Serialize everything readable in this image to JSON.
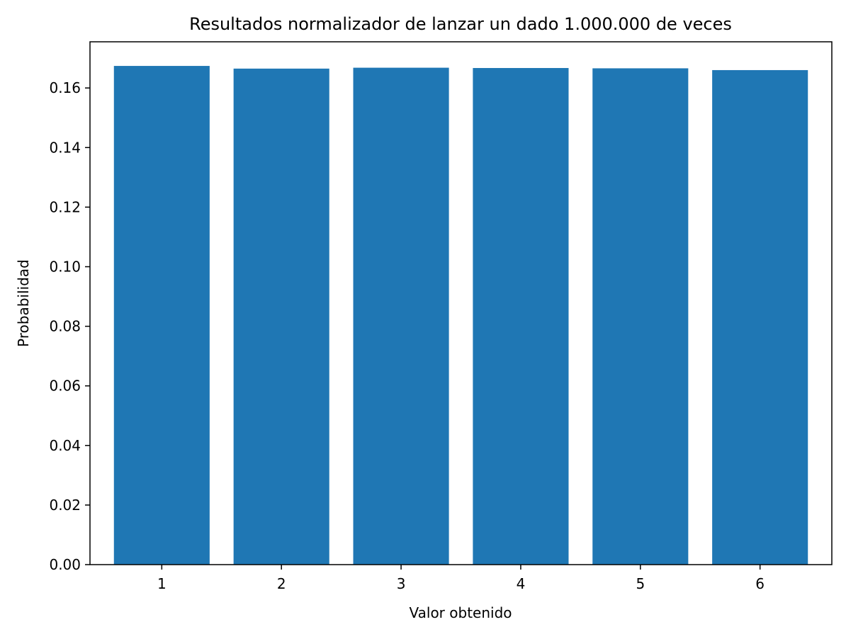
{
  "chart_data": {
    "type": "bar",
    "title": "Resultados normalizador de lanzar un dado 1.000.000 de veces",
    "xlabel": "Valor obtenido",
    "ylabel": "Probabilidad",
    "categories": [
      "1",
      "2",
      "3",
      "4",
      "5",
      "6"
    ],
    "values": [
      0.1674,
      0.1665,
      0.1668,
      0.1667,
      0.1666,
      0.166
    ],
    "xlim": [
      0.4,
      6.6
    ],
    "ylim": [
      0,
      0.1755
    ],
    "yticks": [
      0.0,
      0.02,
      0.04,
      0.06,
      0.08,
      0.1,
      0.12,
      0.14,
      0.16
    ],
    "ytick_labels": [
      "0.00",
      "0.02",
      "0.04",
      "0.06",
      "0.08",
      "0.10",
      "0.12",
      "0.14",
      "0.16"
    ],
    "bar_width": 0.8,
    "grid": false,
    "legend": "none",
    "colors": {
      "bar": "#1f77b4",
      "axes": "#000000"
    }
  }
}
